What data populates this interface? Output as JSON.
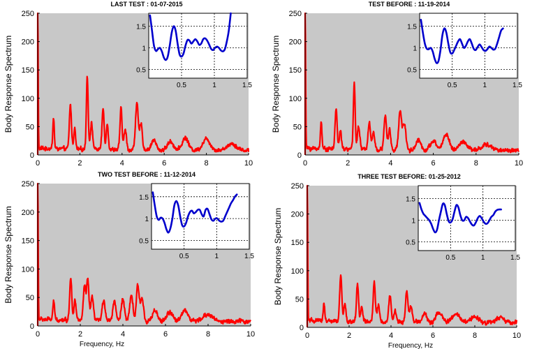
{
  "colors": {
    "main_background": "#c8c8c8",
    "main_series": "#ff0000",
    "inset_background": "#ffffff",
    "inset_series": "#0000cc",
    "axis": "#000000"
  },
  "chart_data": [
    {
      "type": "line",
      "title": "LAST TEST : 01-07-2015",
      "ylabel": "Body Response Spectrum",
      "xlabel": "",
      "xlim": [
        0,
        10
      ],
      "ylim": [
        0,
        250
      ],
      "xticks": [
        "0",
        "2",
        "4",
        "6",
        "8",
        "10"
      ],
      "yticks": [
        "0",
        "50",
        "100",
        "150",
        "200",
        "250"
      ],
      "peaks": [
        {
          "x": 0.0,
          "y": 250,
          "w": 0.03
        },
        {
          "x": 0.75,
          "y": 55,
          "w": 0.05
        },
        {
          "x": 1.55,
          "y": 78,
          "w": 0.07
        },
        {
          "x": 1.75,
          "y": 38,
          "w": 0.06
        },
        {
          "x": 2.35,
          "y": 130,
          "w": 0.06
        },
        {
          "x": 2.55,
          "y": 45,
          "w": 0.08
        },
        {
          "x": 3.1,
          "y": 72,
          "w": 0.07
        },
        {
          "x": 3.3,
          "y": 45,
          "w": 0.07
        },
        {
          "x": 3.95,
          "y": 72,
          "w": 0.07
        },
        {
          "x": 4.15,
          "y": 35,
          "w": 0.08
        },
        {
          "x": 4.7,
          "y": 83,
          "w": 0.09
        },
        {
          "x": 4.9,
          "y": 45,
          "w": 0.09
        },
        {
          "x": 5.5,
          "y": 18,
          "w": 0.15
        },
        {
          "x": 6.3,
          "y": 15,
          "w": 0.2
        },
        {
          "x": 7.0,
          "y": 22,
          "w": 0.2
        },
        {
          "x": 8.0,
          "y": 20,
          "w": 0.25
        },
        {
          "x": 9.2,
          "y": 12,
          "w": 0.3
        }
      ],
      "inset": {
        "xlim": [
          0,
          1.5
        ],
        "ylim": [
          0.3,
          1.8
        ],
        "xticks": [
          "0.5",
          "1",
          "1.5"
        ],
        "yticks": [
          "0.5",
          "1",
          "1.5"
        ],
        "x": [
          0.02,
          0.05,
          0.08,
          0.11,
          0.14,
          0.17,
          0.2,
          0.23,
          0.26,
          0.29,
          0.32,
          0.35,
          0.38,
          0.41,
          0.44,
          0.47,
          0.5,
          0.53,
          0.56,
          0.59,
          0.62,
          0.65,
          0.68,
          0.71,
          0.74,
          0.77,
          0.8,
          0.83,
          0.86,
          0.89,
          0.92,
          0.95,
          0.98,
          1.01,
          1.04,
          1.07,
          1.1,
          1.13,
          1.16,
          1.19,
          1.22,
          1.25
        ],
        "y": [
          1.75,
          1.4,
          1.05,
          0.93,
          0.97,
          1.0,
          0.92,
          0.78,
          0.72,
          0.8,
          1.05,
          1.35,
          1.5,
          1.4,
          1.1,
          0.85,
          0.8,
          0.87,
          1.05,
          1.18,
          1.17,
          1.1,
          1.15,
          1.2,
          1.15,
          1.07,
          1.1,
          1.2,
          1.22,
          1.17,
          1.08,
          0.98,
          0.95,
          1.0,
          1.03,
          1.0,
          0.94,
          0.92,
          0.97,
          1.15,
          1.4,
          1.8
        ]
      }
    },
    {
      "type": "line",
      "title": "TEST BEFORE : 11-19-2014",
      "ylabel": "Body Response Spectrum",
      "xlabel": "",
      "xlim": [
        0,
        10
      ],
      "ylim": [
        0,
        250
      ],
      "xticks": [
        "0",
        "2",
        "4",
        "6",
        "8",
        "10"
      ],
      "yticks": [
        "0",
        "50",
        "100",
        "150",
        "200",
        "250"
      ],
      "peaks": [
        {
          "x": 0.0,
          "y": 250,
          "w": 0.03
        },
        {
          "x": 0.75,
          "y": 50,
          "w": 0.05
        },
        {
          "x": 1.45,
          "y": 70,
          "w": 0.07
        },
        {
          "x": 1.65,
          "y": 35,
          "w": 0.06
        },
        {
          "x": 2.3,
          "y": 117,
          "w": 0.06
        },
        {
          "x": 2.5,
          "y": 40,
          "w": 0.08
        },
        {
          "x": 3.0,
          "y": 48,
          "w": 0.08
        },
        {
          "x": 3.2,
          "y": 30,
          "w": 0.08
        },
        {
          "x": 3.75,
          "y": 60,
          "w": 0.08
        },
        {
          "x": 3.95,
          "y": 35,
          "w": 0.08
        },
        {
          "x": 4.45,
          "y": 68,
          "w": 0.1
        },
        {
          "x": 4.65,
          "y": 45,
          "w": 0.1
        },
        {
          "x": 5.3,
          "y": 18,
          "w": 0.15
        },
        {
          "x": 6.0,
          "y": 15,
          "w": 0.2
        },
        {
          "x": 6.6,
          "y": 28,
          "w": 0.2
        },
        {
          "x": 7.4,
          "y": 15,
          "w": 0.25
        },
        {
          "x": 8.5,
          "y": 10,
          "w": 0.3
        }
      ],
      "inset": {
        "xlim": [
          0,
          1.5
        ],
        "ylim": [
          0.3,
          1.8
        ],
        "xticks": [
          "0.5",
          "1",
          "1.5"
        ],
        "yticks": [
          "0.5",
          "1",
          "1.5"
        ],
        "x": [
          0.02,
          0.05,
          0.08,
          0.11,
          0.14,
          0.17,
          0.2,
          0.23,
          0.26,
          0.29,
          0.32,
          0.35,
          0.38,
          0.41,
          0.44,
          0.47,
          0.5,
          0.53,
          0.56,
          0.59,
          0.62,
          0.65,
          0.68,
          0.71,
          0.74,
          0.77,
          0.8,
          0.83,
          0.86,
          0.89,
          0.92,
          0.95,
          0.98,
          1.01,
          1.04,
          1.07,
          1.1,
          1.13,
          1.16,
          1.19,
          1.22,
          1.25,
          1.28
        ],
        "y": [
          1.65,
          1.35,
          1.1,
          0.98,
          0.97,
          1.0,
          0.92,
          0.75,
          0.65,
          0.7,
          0.95,
          1.3,
          1.45,
          1.35,
          1.1,
          0.9,
          0.87,
          0.95,
          1.05,
          1.15,
          1.2,
          1.1,
          1.0,
          1.05,
          1.15,
          1.2,
          1.1,
          0.98,
          0.95,
          1.02,
          1.08,
          1.02,
          0.95,
          0.93,
          0.97,
          1.03,
          1.0,
          0.96,
          0.98,
          1.1,
          1.25,
          1.4,
          1.45
        ]
      }
    },
    {
      "type": "line",
      "title": "TWO TEST BEFORE : 11-12-2014",
      "ylabel": "Body Response Spectrum",
      "xlabel": "Frequency, Hz",
      "xlim": [
        0,
        10
      ],
      "ylim": [
        0,
        250
      ],
      "xticks": [
        "0",
        "2",
        "4",
        "6",
        "8",
        "10"
      ],
      "yticks": [
        "0",
        "50",
        "100",
        "150",
        "200",
        "250"
      ],
      "peaks": [
        {
          "x": 0.0,
          "y": 250,
          "w": 0.03
        },
        {
          "x": 0.75,
          "y": 30,
          "w": 0.06
        },
        {
          "x": 1.55,
          "y": 75,
          "w": 0.07
        },
        {
          "x": 1.75,
          "y": 35,
          "w": 0.07
        },
        {
          "x": 2.2,
          "y": 60,
          "w": 0.08
        },
        {
          "x": 2.35,
          "y": 72,
          "w": 0.07
        },
        {
          "x": 2.55,
          "y": 40,
          "w": 0.09
        },
        {
          "x": 3.1,
          "y": 35,
          "w": 0.1
        },
        {
          "x": 3.6,
          "y": 35,
          "w": 0.1
        },
        {
          "x": 4.0,
          "y": 40,
          "w": 0.1
        },
        {
          "x": 4.4,
          "y": 45,
          "w": 0.1
        },
        {
          "x": 4.7,
          "y": 62,
          "w": 0.09
        },
        {
          "x": 4.9,
          "y": 40,
          "w": 0.1
        },
        {
          "x": 5.5,
          "y": 18,
          "w": 0.15
        },
        {
          "x": 6.2,
          "y": 15,
          "w": 0.2
        },
        {
          "x": 6.9,
          "y": 20,
          "w": 0.2
        },
        {
          "x": 8.0,
          "y": 12,
          "w": 0.3
        }
      ],
      "inset": {
        "xlim": [
          0,
          1.5
        ],
        "ylim": [
          0.3,
          1.8
        ],
        "xticks": [
          "0.5",
          "1",
          "1.5"
        ],
        "yticks": [
          "0.5",
          "1",
          "1.5"
        ],
        "x": [
          0.02,
          0.05,
          0.08,
          0.11,
          0.14,
          0.17,
          0.2,
          0.23,
          0.26,
          0.29,
          0.32,
          0.35,
          0.38,
          0.41,
          0.44,
          0.47,
          0.5,
          0.53,
          0.56,
          0.59,
          0.62,
          0.65,
          0.68,
          0.71,
          0.74,
          0.77,
          0.8,
          0.83,
          0.86,
          0.89,
          0.92,
          0.95,
          0.98,
          1.01,
          1.04,
          1.07,
          1.1,
          1.13,
          1.16,
          1.19,
          1.22,
          1.25,
          1.28,
          1.31
        ],
        "y": [
          1.6,
          1.3,
          1.05,
          0.97,
          1.02,
          1.0,
          0.9,
          0.75,
          0.68,
          0.78,
          1.0,
          1.3,
          1.4,
          1.3,
          1.05,
          0.85,
          0.82,
          0.9,
          1.05,
          1.15,
          1.18,
          1.12,
          1.15,
          1.2,
          1.2,
          1.1,
          1.05,
          1.2,
          1.22,
          1.1,
          0.98,
          0.95,
          1.0,
          1.0,
          0.95,
          0.93,
          0.95,
          1.05,
          1.15,
          1.25,
          1.35,
          1.42,
          1.5,
          1.55
        ]
      }
    },
    {
      "type": "line",
      "title": "THREE TEST BEFORE:    01-25-2012",
      "ylabel": "Body Response Spectrum",
      "xlabel": "Frequency, Hz",
      "xlim": [
        0,
        10
      ],
      "ylim": [
        0,
        250
      ],
      "xticks": [
        "0",
        "2",
        "4",
        "6",
        "8",
        "10"
      ],
      "yticks": [
        "0",
        "50",
        "100",
        "150",
        "200",
        "250"
      ],
      "peaks": [
        {
          "x": 0.0,
          "y": 250,
          "w": 0.03
        },
        {
          "x": 0.8,
          "y": 30,
          "w": 0.06
        },
        {
          "x": 1.6,
          "y": 82,
          "w": 0.07
        },
        {
          "x": 1.8,
          "y": 30,
          "w": 0.07
        },
        {
          "x": 2.4,
          "y": 65,
          "w": 0.07
        },
        {
          "x": 2.6,
          "y": 25,
          "w": 0.08
        },
        {
          "x": 3.2,
          "y": 70,
          "w": 0.07
        },
        {
          "x": 3.4,
          "y": 30,
          "w": 0.08
        },
        {
          "x": 3.95,
          "y": 48,
          "w": 0.08
        },
        {
          "x": 4.2,
          "y": 20,
          "w": 0.08
        },
        {
          "x": 4.75,
          "y": 55,
          "w": 0.08
        },
        {
          "x": 4.95,
          "y": 30,
          "w": 0.09
        },
        {
          "x": 5.6,
          "y": 15,
          "w": 0.15
        },
        {
          "x": 6.3,
          "y": 18,
          "w": 0.2
        },
        {
          "x": 7.1,
          "y": 15,
          "w": 0.25
        },
        {
          "x": 8.0,
          "y": 10,
          "w": 0.3
        },
        {
          "x": 9.2,
          "y": 8,
          "w": 0.3
        }
      ],
      "inset": {
        "xlim": [
          0,
          1.5
        ],
        "ylim": [
          0.3,
          1.8
        ],
        "xticks": [
          "0.5",
          "1",
          "1.5"
        ],
        "yticks": [
          "0.5",
          "1",
          "1.5"
        ],
        "x": [
          0.02,
          0.05,
          0.08,
          0.11,
          0.14,
          0.17,
          0.2,
          0.23,
          0.26,
          0.29,
          0.32,
          0.35,
          0.38,
          0.41,
          0.44,
          0.47,
          0.5,
          0.53,
          0.56,
          0.59,
          0.62,
          0.65,
          0.68,
          0.71,
          0.74,
          0.77,
          0.8,
          0.83,
          0.86,
          0.89,
          0.92,
          0.95,
          0.98,
          1.01,
          1.04,
          1.07,
          1.1,
          1.13,
          1.16,
          1.19,
          1.22,
          1.25,
          1.28
        ],
        "y": [
          1.4,
          1.25,
          1.15,
          1.1,
          1.05,
          1.0,
          0.92,
          0.8,
          0.72,
          0.78,
          1.0,
          1.2,
          1.38,
          1.35,
          1.15,
          0.98,
          0.95,
          1.02,
          1.2,
          1.35,
          1.3,
          1.12,
          1.0,
          1.0,
          1.08,
          1.05,
          0.97,
          0.9,
          0.88,
          0.95,
          1.05,
          1.1,
          1.05,
          0.97,
          0.92,
          0.93,
          1.0,
          1.08,
          1.12,
          1.2,
          1.24,
          1.25,
          1.25
        ]
      }
    }
  ]
}
